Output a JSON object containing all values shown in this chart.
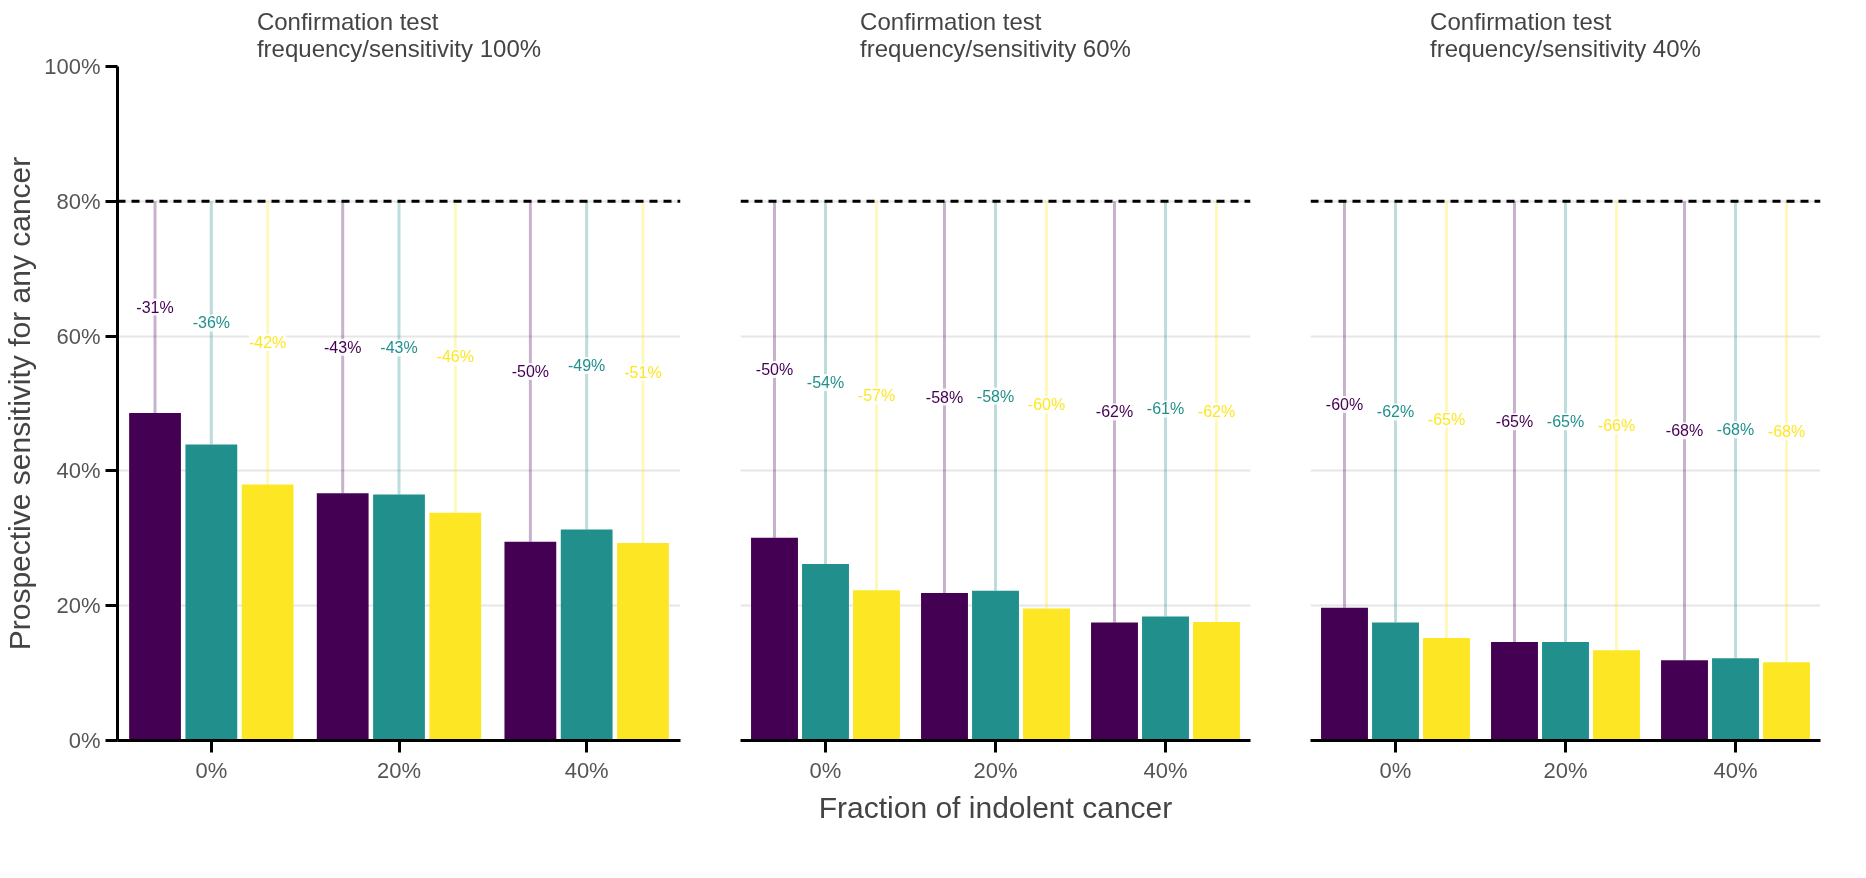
{
  "chart_data": [
    {
      "type": "bar",
      "title": "Confirmation test\nfrequency/sensitivity 100%",
      "ylabel": "Prospective sensitivity for any cancer",
      "categories": [
        "0%",
        "20%",
        "40%"
      ],
      "ylim": [
        0,
        100
      ],
      "yticks": [
        {
          "value": 0,
          "label": "0%"
        },
        {
          "value": 20,
          "label": "20%"
        },
        {
          "value": 40,
          "label": "40%"
        },
        {
          "value": 60,
          "label": "60%"
        },
        {
          "value": 80,
          "label": "80%"
        },
        {
          "value": 100,
          "label": "100%"
        }
      ],
      "grid": "y",
      "ref_lines": [
        {
          "axis": "y",
          "value": 80,
          "color": "#000000",
          "line_style": "dashed"
        }
      ],
      "series": [
        {
          "color": "#440154",
          "values": [
            48.6,
            36.7,
            29.5
          ],
          "errors": [
            [
              48.6,
              80
            ],
            [
              36.7,
              80
            ],
            [
              29.5,
              80
            ]
          ]
        },
        {
          "color": "#21908c",
          "values": [
            43.9,
            36.5,
            31.3
          ],
          "errors": [
            [
              43.9,
              80
            ],
            [
              36.5,
              80
            ],
            [
              31.3,
              80
            ]
          ]
        },
        {
          "color": "#fde725",
          "values": [
            38.0,
            33.8,
            29.3
          ],
          "errors": [
            [
              38.0,
              80
            ],
            [
              33.8,
              80
            ],
            [
              29.3,
              80
            ]
          ]
        }
      ],
      "annotations": [
        "-31%",
        "-36%",
        "-42%",
        "-43%",
        "-43%",
        "-46%",
        "-50%",
        "-49%",
        "-51%"
      ]
    },
    {
      "type": "bar",
      "title": "Confirmation test\nfrequency/sensitivity 60%",
      "xlabel": "Fraction of indolent cancer",
      "categories": [
        "0%",
        "20%",
        "40%"
      ],
      "tick_labels": "x",
      "ylim": [
        0,
        100
      ],
      "yticks": [
        0,
        20,
        40,
        60,
        80,
        100
      ],
      "grid": "y",
      "ref_lines": [
        {
          "axis": "y",
          "value": 80,
          "color": "#000000",
          "line_style": "dashed"
        }
      ],
      "series": [
        {
          "color": "#440154",
          "values": [
            30.1,
            21.9,
            17.5
          ],
          "errors": [
            [
              30.1,
              80
            ],
            [
              21.9,
              80
            ],
            [
              17.5,
              80
            ]
          ]
        },
        {
          "color": "#21908c",
          "values": [
            26.2,
            22.2,
            18.4
          ],
          "errors": [
            [
              26.2,
              80
            ],
            [
              22.2,
              80
            ],
            [
              18.4,
              80
            ]
          ]
        },
        {
          "color": "#fde725",
          "values": [
            22.3,
            19.6,
            17.6
          ],
          "errors": [
            [
              22.3,
              80
            ],
            [
              19.6,
              80
            ],
            [
              17.6,
              80
            ]
          ]
        }
      ],
      "annotations": [
        "-50%",
        "-54%",
        "-57%",
        "-58%",
        "-58%",
        "-60%",
        "-62%",
        "-61%",
        "-62%"
      ]
    },
    {
      "type": "bar",
      "title": "Confirmation test\nfrequency/sensitivity 40%",
      "categories": [
        "0%",
        "20%",
        "40%"
      ],
      "tick_labels": "x",
      "ylim": [
        0,
        100
      ],
      "yticks": [
        0,
        20,
        40,
        60,
        80,
        100
      ],
      "grid": "y",
      "ref_lines": [
        {
          "axis": "y",
          "value": 80,
          "color": "#000000",
          "line_style": "dashed"
        }
      ],
      "series": [
        {
          "color": "#440154",
          "values": [
            19.7,
            14.6,
            11.9
          ],
          "errors": [
            [
              19.7,
              80
            ],
            [
              14.6,
              80
            ],
            [
              11.9,
              80
            ]
          ]
        },
        {
          "color": "#21908c",
          "values": [
            17.5,
            14.6,
            12.2
          ],
          "errors": [
            [
              17.5,
              80
            ],
            [
              14.6,
              80
            ],
            [
              12.2,
              80
            ]
          ]
        },
        {
          "color": "#fde725",
          "values": [
            15.2,
            13.4,
            11.6
          ],
          "errors": [
            [
              15.2,
              80
            ],
            [
              13.4,
              80
            ],
            [
              11.6,
              80
            ]
          ]
        }
      ],
      "annotations": [
        "-60%",
        "-62%",
        "-65%",
        "-65%",
        "-65%",
        "-66%",
        "-68%",
        "-68%",
        "-68%"
      ]
    }
  ]
}
